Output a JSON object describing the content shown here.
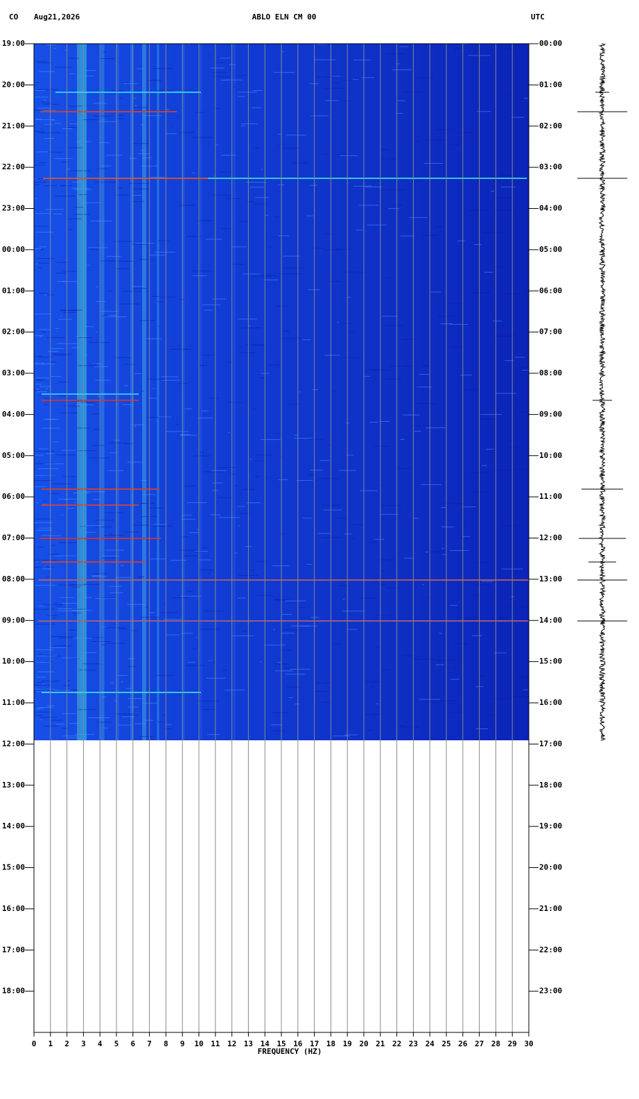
{
  "chart_data": {
    "type": "spectrogram",
    "network": "CO",
    "date": "Aug21,2026",
    "title": "ABLO ELN CM 00",
    "timezone": "UTC",
    "xlabel": "FREQUENCY (HZ)",
    "xlim": [
      0,
      30
    ],
    "xticks": [
      0,
      1,
      2,
      3,
      4,
      5,
      6,
      7,
      8,
      9,
      10,
      11,
      12,
      13,
      14,
      15,
      16,
      17,
      18,
      19,
      20,
      21,
      22,
      23,
      24,
      25,
      26,
      27,
      28,
      29,
      30
    ],
    "ylim": [
      0,
      24
    ],
    "yticks": [
      {
        "value": 0,
        "label": "19:00"
      },
      {
        "value": 1,
        "label": "20:00"
      },
      {
        "value": 2,
        "label": "21:00"
      },
      {
        "value": 3,
        "label": "22:00"
      },
      {
        "value": 4,
        "label": "23:00"
      },
      {
        "value": 5,
        "label": "00:00"
      },
      {
        "value": 6,
        "label": "01:00"
      },
      {
        "value": 7,
        "label": "02:00"
      },
      {
        "value": 8,
        "label": "03:00"
      },
      {
        "value": 9,
        "label": "04:00"
      },
      {
        "value": 10,
        "label": "05:00"
      },
      {
        "value": 11,
        "label": "06:00"
      },
      {
        "value": 12,
        "label": "07:00"
      },
      {
        "value": 13,
        "label": "08:00"
      },
      {
        "value": 14,
        "label": "09:00"
      },
      {
        "value": 15,
        "label": "10:00"
      },
      {
        "value": 16,
        "label": "11:00"
      },
      {
        "value": 17,
        "label": "12:00"
      },
      {
        "value": 18,
        "label": "13:00"
      },
      {
        "value": 19,
        "label": "14:00"
      },
      {
        "value": 20,
        "label": "15:00"
      },
      {
        "value": 21,
        "label": "16:00"
      },
      {
        "value": 22,
        "label": "17:00"
      },
      {
        "value": 23,
        "label": "18:00"
      }
    ],
    "y2lim": [
      0,
      24
    ],
    "y2ticks": [
      {
        "value": 0,
        "label": "00:00"
      },
      {
        "value": 1,
        "label": "01:00"
      },
      {
        "value": 2,
        "label": "02:00"
      },
      {
        "value": 3,
        "label": "03:00"
      },
      {
        "value": 4,
        "label": "04:00"
      },
      {
        "value": 5,
        "label": "05:00"
      },
      {
        "value": 6,
        "label": "06:00"
      },
      {
        "value": 7,
        "label": "07:00"
      },
      {
        "value": 8,
        "label": "08:00"
      },
      {
        "value": 9,
        "label": "09:00"
      },
      {
        "value": 10,
        "label": "10:00"
      },
      {
        "value": 11,
        "label": "11:00"
      },
      {
        "value": 12,
        "label": "12:00"
      },
      {
        "value": 13,
        "label": "13:00"
      },
      {
        "value": 14,
        "label": "14:00"
      },
      {
        "value": 15,
        "label": "15:00"
      },
      {
        "value": 16,
        "label": "16:00"
      },
      {
        "value": 17,
        "label": "17:00"
      },
      {
        "value": 18,
        "label": "18:00"
      },
      {
        "value": 19,
        "label": "19:00"
      },
      {
        "value": 20,
        "label": "20:00"
      },
      {
        "value": 21,
        "label": "21:00"
      },
      {
        "value": 22,
        "label": "22:00"
      },
      {
        "value": 23,
        "label": "23:00"
      }
    ],
    "grid": true
  }
}
